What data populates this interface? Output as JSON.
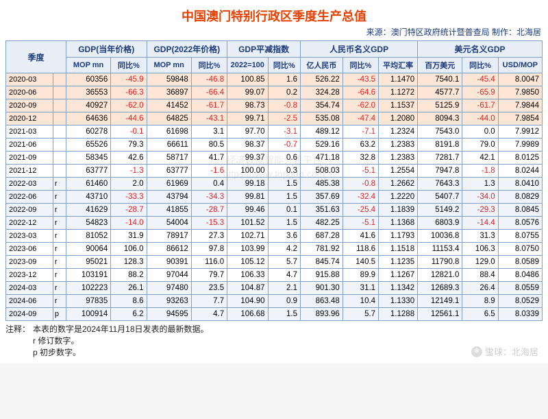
{
  "title": "中国澳门特别行政区季度生产总值",
  "source": "来源：澳门特区政府统计暨普查局   制作：北海居",
  "watermark_line1": "经济数据智能分析平台",
  "watermark_line2": "https://www.topgdp.com",
  "snowball_text": "雪球：北海居",
  "header": {
    "quarter": "季度",
    "g1": "GDP(当年价格)",
    "g2": "GDP(2022年价格)",
    "g3": "GDP平减指数",
    "g4": "人民币名义GDP",
    "g5": "美元名义GDP",
    "sub": {
      "mop": "MOP mn",
      "yoy": "同比%",
      "idx": "2022=100",
      "rmb": "亿人民币",
      "avgfx": "平均汇率",
      "usd": "百万美元",
      "usdmop": "USD/MOP"
    }
  },
  "colwidths": [
    "58",
    "16",
    "55",
    "44",
    "55",
    "44",
    "50",
    "40",
    "52",
    "44",
    "48",
    "55",
    "44",
    "54"
  ],
  "rows": [
    {
      "band": 0,
      "q": "2020-03",
      "f": "",
      "c": [
        "60356",
        "-45.9",
        "59848",
        "-46.8",
        "100.85",
        "1.6",
        "526.22",
        "-43.5",
        "1.1470",
        "7540.1",
        "-45.4",
        "8.0047"
      ]
    },
    {
      "band": 0,
      "q": "2020-06",
      "f": "",
      "c": [
        "36553",
        "-66.3",
        "36897",
        "-66.4",
        "99.07",
        "0.2",
        "324.28",
        "-64.6",
        "1.1272",
        "4577.7",
        "-65.9",
        "7.9850"
      ]
    },
    {
      "band": 0,
      "q": "2020-09",
      "f": "",
      "c": [
        "40927",
        "-62.0",
        "41452",
        "-61.7",
        "98.73",
        "-0.8",
        "354.74",
        "-62.0",
        "1.1537",
        "5125.9",
        "-61.7",
        "7.9844"
      ]
    },
    {
      "band": 0,
      "q": "2020-12",
      "f": "",
      "c": [
        "64636",
        "-44.6",
        "64825",
        "-43.1",
        "99.71",
        "-2.5",
        "535.08",
        "-47.4",
        "1.2080",
        "8094.3",
        "-44.0",
        "7.9854"
      ]
    },
    {
      "band": 1,
      "q": "2021-03",
      "f": "",
      "c": [
        "60278",
        "-0.1",
        "61698",
        "3.1",
        "97.70",
        "-3.1",
        "489.12",
        "-7.1",
        "1.2324",
        "7543.0",
        "0.0",
        "7.9912"
      ]
    },
    {
      "band": 1,
      "q": "2021-06",
      "f": "",
      "c": [
        "65526",
        "79.3",
        "66611",
        "80.5",
        "98.37",
        "-0.7",
        "529.16",
        "63.2",
        "1.2383",
        "8191.8",
        "79.0",
        "7.9989"
      ]
    },
    {
      "band": 1,
      "q": "2021-09",
      "f": "",
      "c": [
        "58345",
        "42.6",
        "58717",
        "41.7",
        "99.37",
        "0.6",
        "471.18",
        "32.8",
        "1.2383",
        "7281.7",
        "42.1",
        "8.0125"
      ]
    },
    {
      "band": 1,
      "q": "2021-12",
      "f": "",
      "c": [
        "63777",
        "-1.3",
        "63777",
        "-1.6",
        "100.00",
        "0.3",
        "508.03",
        "-5.1",
        "1.2554",
        "7947.8",
        "-1.8",
        "8.0244"
      ]
    },
    {
      "band": 2,
      "q": "2022-03",
      "f": "r",
      "c": [
        "61460",
        "2.0",
        "61969",
        "0.4",
        "99.18",
        "1.5",
        "485.38",
        "-0.8",
        "1.2662",
        "7643.3",
        "1.3",
        "8.0410"
      ]
    },
    {
      "band": 2,
      "q": "2022-06",
      "f": "r",
      "c": [
        "43710",
        "-33.3",
        "43794",
        "-34.3",
        "99.81",
        "1.5",
        "357.69",
        "-32.4",
        "1.2220",
        "5407.7",
        "-34.0",
        "8.0829"
      ]
    },
    {
      "band": 2,
      "q": "2022-09",
      "f": "r",
      "c": [
        "41629",
        "-28.7",
        "41855",
        "-28.7",
        "99.46",
        "0.1",
        "351.63",
        "-25.4",
        "1.1839",
        "5149.2",
        "-29.3",
        "8.0845"
      ]
    },
    {
      "band": 2,
      "q": "2022-12",
      "f": "r",
      "c": [
        "54823",
        "-14.0",
        "54004",
        "-15.3",
        "101.52",
        "1.5",
        "482.25",
        "-5.1",
        "1.1368",
        "6803.9",
        "-14.4",
        "8.0576"
      ]
    },
    {
      "band": 1,
      "q": "2023-03",
      "f": "r",
      "c": [
        "81052",
        "31.9",
        "78917",
        "27.3",
        "102.71",
        "3.6",
        "687.28",
        "41.6",
        "1.1793",
        "10036.8",
        "31.3",
        "8.0755"
      ]
    },
    {
      "band": 1,
      "q": "2023-06",
      "f": "r",
      "c": [
        "90064",
        "106.0",
        "86612",
        "97.8",
        "103.99",
        "4.2",
        "781.92",
        "118.6",
        "1.1518",
        "11153.4",
        "106.3",
        "8.0750"
      ]
    },
    {
      "band": 1,
      "q": "2023-09",
      "f": "r",
      "c": [
        "95021",
        "128.3",
        "90391",
        "116.0",
        "105.12",
        "5.7",
        "845.74",
        "140.5",
        "1.1235",
        "11790.8",
        "129.0",
        "8.0589"
      ]
    },
    {
      "band": 1,
      "q": "2023-12",
      "f": "r",
      "c": [
        "103191",
        "88.2",
        "97044",
        "79.7",
        "106.33",
        "4.7",
        "915.88",
        "89.9",
        "1.1267",
        "12821.0",
        "88.4",
        "8.0486"
      ]
    },
    {
      "band": 2,
      "q": "2024-03",
      "f": "r",
      "c": [
        "102223",
        "26.1",
        "97480",
        "23.5",
        "104.87",
        "2.1",
        "901.30",
        "31.1",
        "1.1342",
        "12689.3",
        "26.4",
        "8.0559"
      ]
    },
    {
      "band": 2,
      "q": "2024-06",
      "f": "r",
      "c": [
        "97835",
        "8.6",
        "93263",
        "7.7",
        "104.90",
        "0.9",
        "863.48",
        "10.4",
        "1.1330",
        "12149.1",
        "8.9",
        "8.0529"
      ]
    },
    {
      "band": 2,
      "q": "2024-09",
      "f": "p",
      "c": [
        "100914",
        "6.2",
        "94595",
        "4.7",
        "106.68",
        "1.5",
        "893.96",
        "5.7",
        "1.1288",
        "12561.1",
        "6.5",
        "8.0339"
      ]
    }
  ],
  "notes": {
    "label": "注释：",
    "n1": "本表的数字是2024年11月18日发表的最新数据。",
    "n2": "r  修订数字。",
    "n3": "p  初步数字。"
  }
}
